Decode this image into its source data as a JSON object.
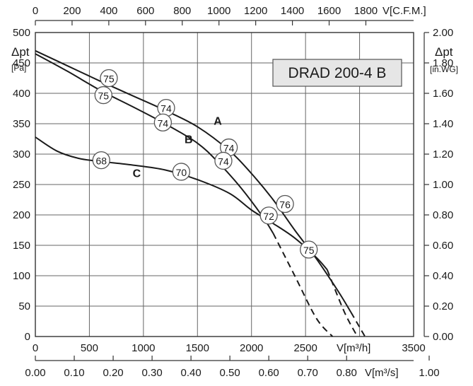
{
  "chart_data": {
    "type": "line",
    "title": "DRAD 200-4 B",
    "x_unit": "V[m³/h]",
    "x_unit_top": "V[C.F.M.]",
    "x_unit_bottom": "V[m³/s]",
    "y_left_label": "Δpt",
    "y_left_unit": "[Pa]",
    "y_right_label": "Δpt",
    "y_right_unit": "[in.WG]",
    "xlim": [
      0,
      3500
    ],
    "ylim": [
      0,
      500
    ],
    "grid": true,
    "x_ticks": [
      "0",
      "500",
      "1000",
      "1500",
      "2000",
      "2500",
      "3500"
    ],
    "y_left_ticks": [
      "0",
      "50",
      "100",
      "150",
      "200",
      "250",
      "300",
      "350",
      "400",
      "450",
      "500"
    ],
    "y_right_ticks": [
      "0.00",
      "0.20",
      "0.40",
      "0.60",
      "0.80",
      "1.00",
      "1.20",
      "1.40",
      "1.60",
      "1.80",
      "2.00"
    ],
    "top_ticks": [
      "0",
      "200",
      "400",
      "600",
      "800",
      "1000",
      "1200",
      "1400",
      "1600",
      "1800"
    ],
    "bottom_ticks": [
      "0.00",
      "0.10",
      "0.20",
      "0.30",
      "0.40",
      "0.50",
      "0.60",
      "0.70",
      "0.80",
      "1.00"
    ],
    "series": [
      {
        "name": "A",
        "solid": [
          [
            0,
            470
          ],
          [
            300,
            445
          ],
          [
            600,
            420
          ],
          [
            900,
            396
          ],
          [
            1200,
            372
          ],
          [
            1500,
            345
          ],
          [
            1800,
            305
          ],
          [
            2000,
            268
          ],
          [
            2200,
            225
          ],
          [
            2400,
            175
          ],
          [
            2600,
            128
          ],
          [
            2800,
            75
          ],
          [
            2920,
            40
          ]
        ],
        "dashed": [
          [
            2920,
            40
          ],
          [
            3050,
            0
          ]
        ]
      },
      {
        "name": "B",
        "solid": [
          [
            0,
            465
          ],
          [
            300,
            436
          ],
          [
            600,
            405
          ],
          [
            900,
            378
          ],
          [
            1200,
            350
          ],
          [
            1500,
            318
          ],
          [
            1700,
            285
          ],
          [
            1900,
            245
          ],
          [
            2100,
            198
          ],
          [
            2200,
            170
          ]
        ],
        "dashed": [
          [
            2200,
            170
          ],
          [
            2400,
            100
          ],
          [
            2600,
            30
          ],
          [
            2750,
            0
          ]
        ]
      },
      {
        "name": "C",
        "solid": [
          [
            0,
            328
          ],
          [
            200,
            305
          ],
          [
            400,
            293
          ],
          [
            600,
            288
          ],
          [
            900,
            282
          ],
          [
            1200,
            274
          ],
          [
            1500,
            258
          ],
          [
            1800,
            235
          ],
          [
            2000,
            208
          ],
          [
            2200,
            186
          ],
          [
            2400,
            162
          ],
          [
            2600,
            130
          ],
          [
            2700,
            110
          ]
        ],
        "dashed": [
          [
            2700,
            110
          ],
          [
            2860,
            40
          ],
          [
            2980,
            0
          ]
        ]
      }
    ],
    "curve_labels": [
      {
        "text": "A",
        "x": 1650,
        "y": 348
      },
      {
        "text": "B",
        "x": 1380,
        "y": 318
      },
      {
        "text": "C",
        "x": 900,
        "y": 262
      }
    ],
    "annotations": [
      {
        "text": "75",
        "x": 680,
        "y": 425
      },
      {
        "text": "75",
        "x": 630,
        "y": 397
      },
      {
        "text": "74",
        "x": 1210,
        "y": 376
      },
      {
        "text": "74",
        "x": 1180,
        "y": 352
      },
      {
        "text": "74",
        "x": 1790,
        "y": 311
      },
      {
        "text": "74",
        "x": 1740,
        "y": 289
      },
      {
        "text": "68",
        "x": 610,
        "y": 290
      },
      {
        "text": "70",
        "x": 1350,
        "y": 271
      },
      {
        "text": "76",
        "x": 2310,
        "y": 218
      },
      {
        "text": "72",
        "x": 2160,
        "y": 199
      },
      {
        "text": "75",
        "x": 2530,
        "y": 143
      }
    ]
  }
}
